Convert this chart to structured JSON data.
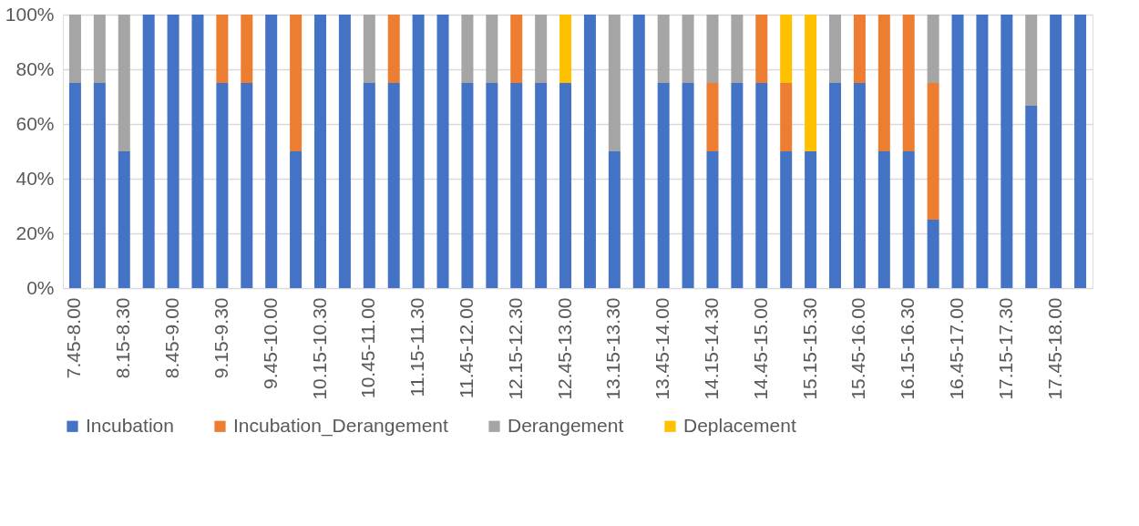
{
  "chart_data": {
    "type": "bar",
    "stacked": true,
    "categories": [
      "7.45-8.00",
      null,
      "8.15-8.30",
      null,
      "8.45-9.00",
      null,
      "9.15-9.30",
      null,
      "9.45-10.00",
      null,
      "10.15-10.30",
      null,
      "10.45-11.00",
      null,
      "11.15-11.30",
      null,
      "11.45-12.00",
      null,
      "12.15-12.30",
      null,
      "12.45-13.00",
      null,
      "13.15-13.30",
      null,
      "13.45-14.00",
      null,
      "14.15-14.30",
      null,
      "14.45-15.00",
      null,
      "15.15-15.30",
      null,
      "15.45-16.00",
      null,
      "16.15-16.30",
      null,
      "16.45-17.00",
      null,
      "17.15-17.30",
      null,
      "17.45-18.00",
      null
    ],
    "series": [
      {
        "name": "Incubation",
        "color": "#4472c4",
        "values": [
          75,
          75,
          50,
          100,
          100,
          100,
          75,
          75,
          100,
          50,
          100,
          100,
          75,
          75,
          100,
          100,
          75,
          75,
          75,
          75,
          75,
          100,
          50,
          100,
          75,
          75,
          50,
          75,
          75,
          50,
          50,
          75,
          75,
          50,
          50,
          25,
          100,
          100,
          100,
          66.7,
          100,
          100
        ]
      },
      {
        "name": "Incubation_Derangement",
        "color": "#ed7d31",
        "values": [
          null,
          null,
          null,
          null,
          null,
          null,
          25,
          25,
          null,
          50,
          null,
          null,
          null,
          25,
          null,
          null,
          null,
          null,
          25,
          null,
          null,
          null,
          null,
          null,
          null,
          null,
          25,
          null,
          25,
          25,
          null,
          null,
          25,
          50,
          50,
          50,
          null,
          null,
          null,
          null,
          null,
          null
        ]
      },
      {
        "name": "Derangement",
        "color": "#a5a5a5",
        "values": [
          25,
          25,
          50,
          null,
          null,
          null,
          null,
          null,
          null,
          null,
          null,
          null,
          25,
          null,
          null,
          null,
          25,
          25,
          null,
          25,
          null,
          null,
          50,
          null,
          25,
          25,
          25,
          25,
          null,
          null,
          null,
          25,
          null,
          null,
          null,
          25,
          null,
          null,
          null,
          33.3,
          null,
          null
        ]
      },
      {
        "name": "Deplacement",
        "color": "#ffc000",
        "values": [
          null,
          null,
          null,
          null,
          null,
          null,
          null,
          null,
          null,
          null,
          null,
          null,
          null,
          null,
          null,
          null,
          null,
          null,
          null,
          null,
          25,
          null,
          null,
          null,
          null,
          null,
          null,
          null,
          null,
          25,
          50,
          null,
          null,
          null,
          null,
          null,
          null,
          null,
          null,
          null,
          null,
          null
        ]
      }
    ],
    "ylim": [
      0,
      100
    ],
    "yticks": [
      {
        "value": 0,
        "label": "0%"
      },
      {
        "value": 20,
        "label": "20%"
      },
      {
        "value": 40,
        "label": "40%"
      },
      {
        "value": 60,
        "label": "60%"
      },
      {
        "value": 80,
        "label": "80%"
      },
      {
        "value": 100,
        "label": "100%"
      }
    ],
    "grid": "y",
    "legend": "bottom"
  }
}
